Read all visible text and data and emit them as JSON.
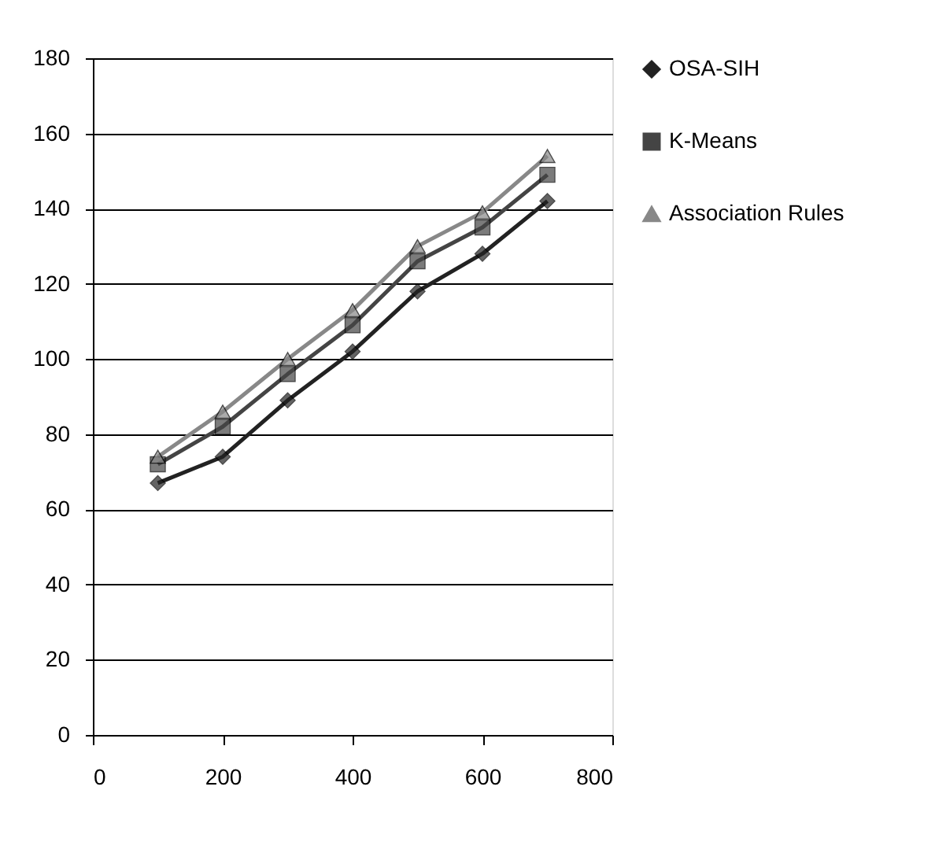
{
  "chart_data": {
    "type": "line",
    "x": [
      100,
      200,
      300,
      400,
      500,
      600,
      700
    ],
    "series": [
      {
        "name": "OSA-SIH",
        "color": "#222222",
        "marker": "diamond",
        "values": [
          67,
          74,
          89,
          102,
          118,
          128,
          142
        ]
      },
      {
        "name": "K-Means",
        "color": "#444444",
        "marker": "square",
        "values": [
          72,
          82,
          96,
          109,
          126,
          135,
          149
        ]
      },
      {
        "name": "Association Rules",
        "color": "#888888",
        "marker": "triangle",
        "values": [
          74,
          86,
          100,
          113,
          130,
          139,
          154
        ]
      }
    ],
    "xlim": [
      0,
      800
    ],
    "xticks": [
      0,
      200,
      400,
      600,
      800
    ],
    "ylim": [
      0,
      180
    ],
    "yticks": [
      0,
      20,
      40,
      60,
      80,
      100,
      120,
      140,
      160,
      180
    ],
    "grid": "y",
    "legend": "right",
    "line_style": "solid"
  }
}
